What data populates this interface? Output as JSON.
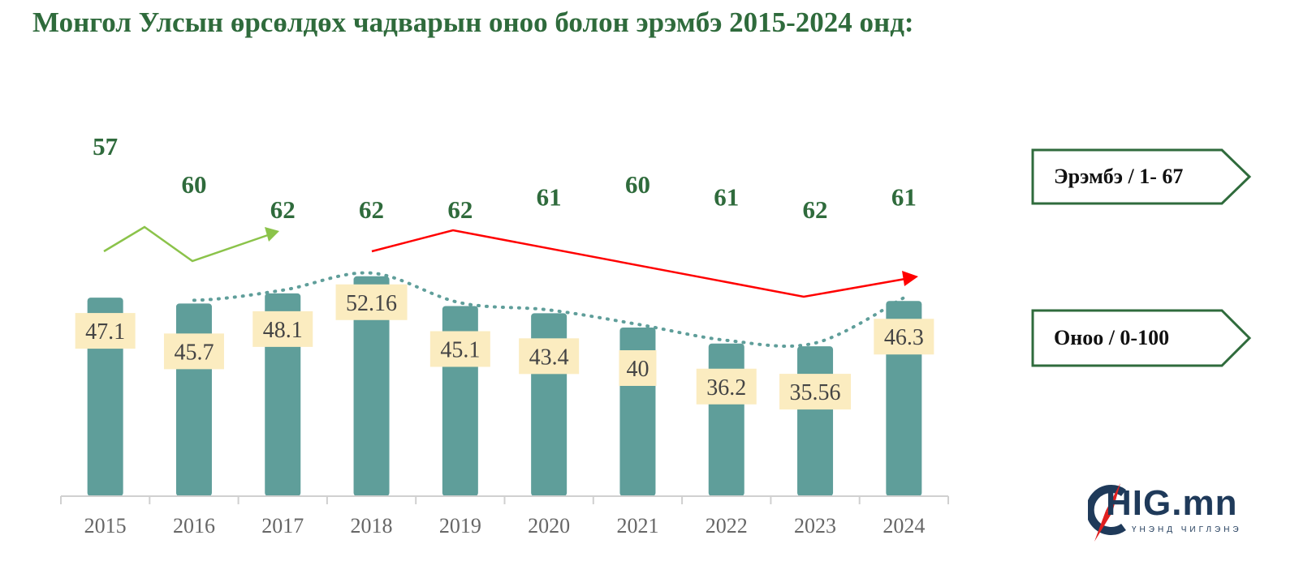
{
  "title": "Монгол Улсын өрсөлдөх чадварын оноо болон эрэмбэ 2015-2024 онд:",
  "colors": {
    "title": "#2f6b3c",
    "bar": "#5f9e9a",
    "label_box": "#fbecc0",
    "dotted_line": "#5f9e9a",
    "rank_text": "#2f6b3c",
    "trend_up": "#8bc34a",
    "trend_down": "#ff0000",
    "tag_border": "#2f6b3c"
  },
  "legend": {
    "rank_tag": "Эрэмбэ / 1- 67",
    "score_tag": "Оноо / 0-100"
  },
  "logo": {
    "main": "HIG.mn",
    "sub": "ҮНЭНД ЧИГЛЭНЭ",
    "icon": "compass-c-icon"
  },
  "chart_data": {
    "type": "bar",
    "categories": [
      "2015",
      "2016",
      "2017",
      "2018",
      "2019",
      "2020",
      "2021",
      "2022",
      "2023",
      "2024"
    ],
    "series": [
      {
        "values": [
          47.1,
          45.7,
          48.1,
          52.16,
          45.1,
          43.4,
          40,
          36.2,
          35.56,
          46.3
        ]
      }
    ],
    "value_labels": [
      "47.1",
      "45.7",
      "48.1",
      "52.16",
      "45.1",
      "43.4",
      "40",
      "36.2",
      "35.56",
      "46.3"
    ],
    "rank": {
      "values": [
        57,
        60,
        62,
        62,
        62,
        61,
        60,
        61,
        62,
        61
      ],
      "ylim": [
        55,
        64
      ]
    },
    "ylim": [
      0,
      100
    ],
    "xlabel": "",
    "ylabel": "",
    "grid": false,
    "dotted_trend_line": true
  }
}
